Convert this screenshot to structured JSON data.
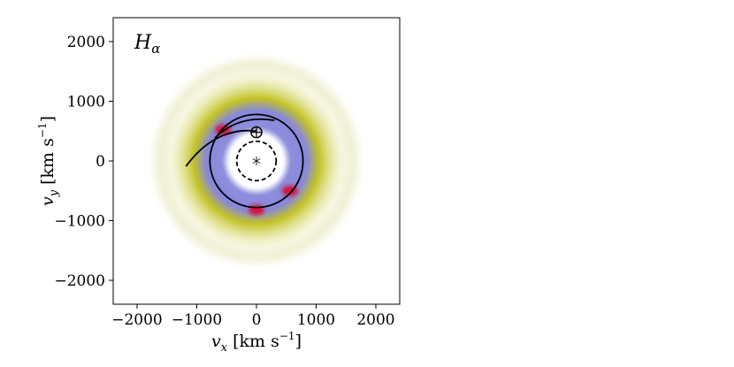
{
  "chart_data": {
    "type": "heatmap",
    "title": "",
    "annotation": {
      "text": "H",
      "subscript": "α"
    },
    "xlabel": {
      "main": "v",
      "sub": "x",
      "unit": " [km s",
      "exp": "−1",
      "close": "]"
    },
    "ylabel": {
      "main": "v",
      "sub": "y",
      "unit": " [km s",
      "exp": "−1",
      "close": "]"
    },
    "xlim": [
      -2400,
      2400
    ],
    "ylim": [
      -2400,
      2400
    ],
    "x_ticks": [
      {
        "value": -2000,
        "label": "−2000"
      },
      {
        "value": -1000,
        "label": "−1000"
      },
      {
        "value": 0,
        "label": "0"
      },
      {
        "value": 1000,
        "label": "1000"
      },
      {
        "value": 2000,
        "label": "2000"
      }
    ],
    "y_ticks": [
      {
        "value": 2000,
        "label": "2000"
      },
      {
        "value": 1000,
        "label": "1000"
      },
      {
        "value": 0,
        "label": "0"
      },
      {
        "value": -1000,
        "label": "−1000"
      },
      {
        "value": -2000,
        "label": "−2000"
      }
    ],
    "colormap": [
      "#ffffff",
      "#b8b800",
      "#7a7ad8",
      "#d4143c"
    ],
    "emission_ring": {
      "center": [
        0,
        0
      ],
      "inner_white_radius": 450,
      "peak_radius": 850,
      "outer_radius": 1700
    },
    "hotspots": [
      {
        "x": -560,
        "y": 520
      },
      {
        "x": 560,
        "y": -500
      },
      {
        "x": 0,
        "y": -820
      }
    ],
    "overlays": {
      "solid_circle": {
        "center": [
          0,
          0
        ],
        "radius": 780
      },
      "dashed_circle": {
        "center": [
          0,
          0
        ],
        "radius": 330
      },
      "small_circle": {
        "center": [
          0,
          480
        ],
        "radius": 90
      },
      "star_marker": {
        "x": 0,
        "y": 0
      },
      "stream_curve": [
        [
          -1180,
          -90
        ],
        [
          -900,
          300
        ],
        [
          -500,
          560
        ],
        [
          0,
          500
        ]
      ],
      "stream_arc": [
        [
          -700,
          380
        ],
        [
          -300,
          780
        ],
        [
          300,
          680
        ]
      ]
    }
  }
}
